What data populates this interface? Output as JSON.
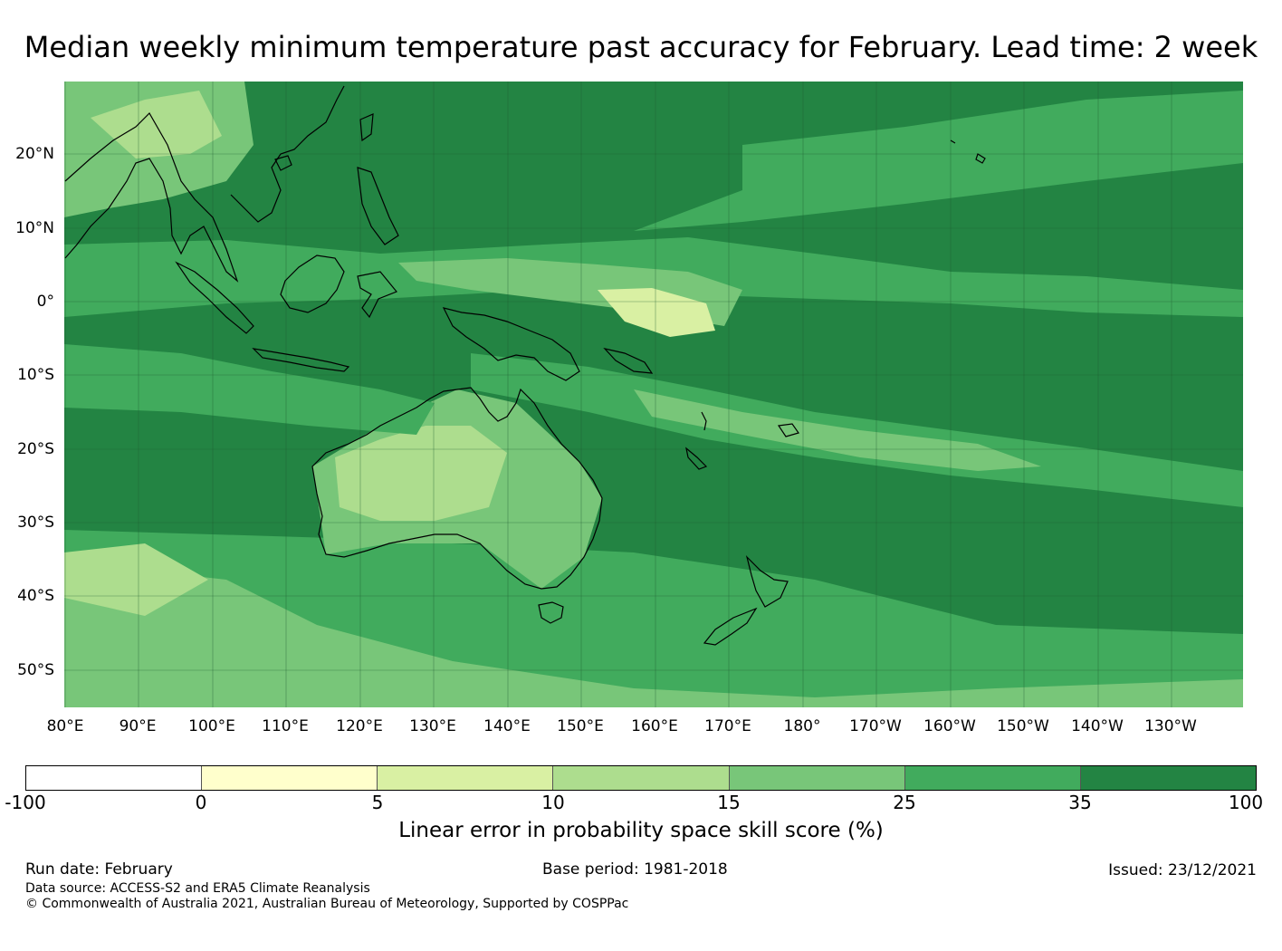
{
  "title": "Median weekly minimum temperature past accuracy for February. Lead time: 2 week",
  "map": {
    "lon_labels": [
      "80°E",
      "90°E",
      "100°E",
      "110°E",
      "120°E",
      "130°E",
      "140°E",
      "150°E",
      "160°E",
      "170°E",
      "180°",
      "170°W",
      "160°W",
      "150°W",
      "140°W",
      "130°W"
    ],
    "lat_labels": [
      "20°N",
      "10°N",
      "0°",
      "10°S",
      "20°S",
      "30°S",
      "40°S",
      "50°S"
    ]
  },
  "colorbar": {
    "label": "Linear error in probability space skill score (%)",
    "ticks": [
      "-100",
      "0",
      "5",
      "10",
      "15",
      "25",
      "35",
      "100"
    ],
    "colors": [
      "#ffffff",
      "#ffffcc",
      "#d9f0a3",
      "#addd8e",
      "#78c679",
      "#41ab5d",
      "#238443"
    ]
  },
  "footer": {
    "run_date": "Run date: February",
    "base_period": "Base period: 1981-2018",
    "issued": "Issued: 23/12/2021",
    "data_source": "Data source: ACCESS-S2 and ERA5 Climate Reanalysis",
    "copyright": "© Commonwealth of Australia 2021, Australian Bureau of Meteorology, Supported by COSPPac"
  }
}
